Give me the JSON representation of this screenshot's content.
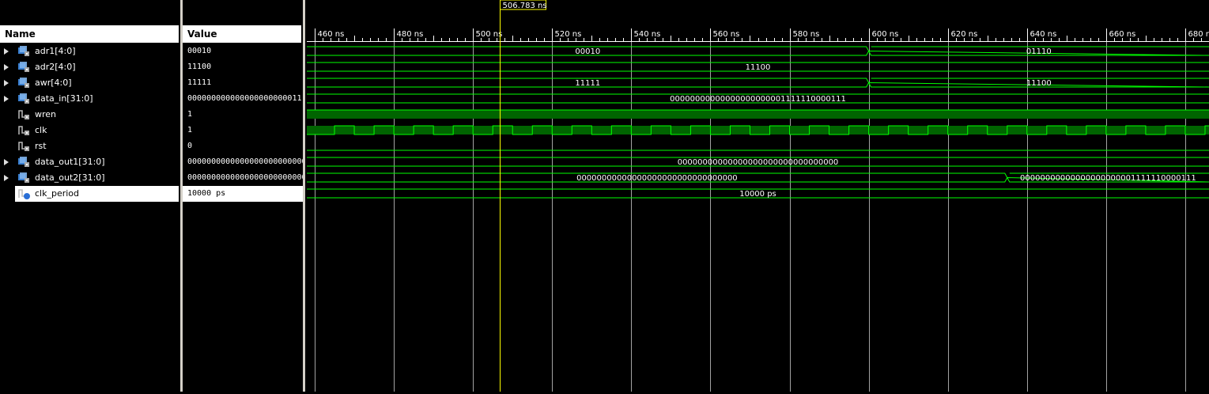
{
  "cursor": {
    "label": "506.783 ns",
    "time_ns": 506.783
  },
  "columns": {
    "name": "Name",
    "value": "Value"
  },
  "time_axis": {
    "range_ns": [
      458,
      686
    ],
    "ticks": [
      "460 ns",
      "480 ns",
      "500 ns",
      "520 ns",
      "540 ns",
      "560 ns",
      "580 ns",
      "600 ns",
      "620 ns",
      "640 ns",
      "660 ns",
      "680 ns"
    ]
  },
  "signals": [
    {
      "name": "adr1[4:0]",
      "value": "00010",
      "kind": "bus",
      "expandable": true,
      "segments": [
        {
          "start": 458,
          "end": 600,
          "label": "00010"
        },
        {
          "start": 600,
          "end": 686,
          "label": "01110"
        }
      ]
    },
    {
      "name": "adr2[4:0]",
      "value": "11100",
      "kind": "bus",
      "expandable": true,
      "segments": [
        {
          "start": 458,
          "end": 686,
          "label": "11100"
        }
      ]
    },
    {
      "name": "awr[4:0]",
      "value": "11111",
      "kind": "bus",
      "expandable": true,
      "segments": [
        {
          "start": 458,
          "end": 600,
          "label": "11111"
        },
        {
          "start": 600,
          "end": 686,
          "label": "11100"
        }
      ]
    },
    {
      "name": "data_in[31:0]",
      "value": "000000000000000000000011",
      "kind": "bus",
      "expandable": true,
      "segments": [
        {
          "start": 458,
          "end": 686,
          "label": "00000000000000000000001111110000111"
        }
      ]
    },
    {
      "name": "wren",
      "value": "1",
      "kind": "const-high",
      "expandable": false
    },
    {
      "name": "clk",
      "value": "1",
      "kind": "clock",
      "expandable": false,
      "period_ns": 10,
      "first_rise_ns": 465
    },
    {
      "name": "rst",
      "value": "0",
      "kind": "const-low",
      "expandable": false
    },
    {
      "name": "data_out1[31:0]",
      "value": "0000000000000000000000000",
      "kind": "bus",
      "expandable": true,
      "segments": [
        {
          "start": 458,
          "end": 686,
          "label": "00000000000000000000000000000000"
        }
      ]
    },
    {
      "name": "data_out2[31:0]",
      "value": "0000000000000000000000000",
      "kind": "bus",
      "expandable": true,
      "segments": [
        {
          "start": 458,
          "end": 635,
          "label": "00000000000000000000000000000000"
        },
        {
          "start": 635,
          "end": 686,
          "label": "00000000000000000000001111110000111"
        }
      ]
    },
    {
      "name": "clk_period",
      "value": "10000 ps",
      "kind": "bus",
      "expandable": false,
      "selected": true,
      "segments": [
        {
          "start": 458,
          "end": 686,
          "label": "10000 ps"
        }
      ]
    }
  ],
  "colors": {
    "wave": "#00ff00",
    "fill": "#006400",
    "cursor": "#ffff00",
    "grid": "#c0c0c0",
    "background": "#000000"
  }
}
